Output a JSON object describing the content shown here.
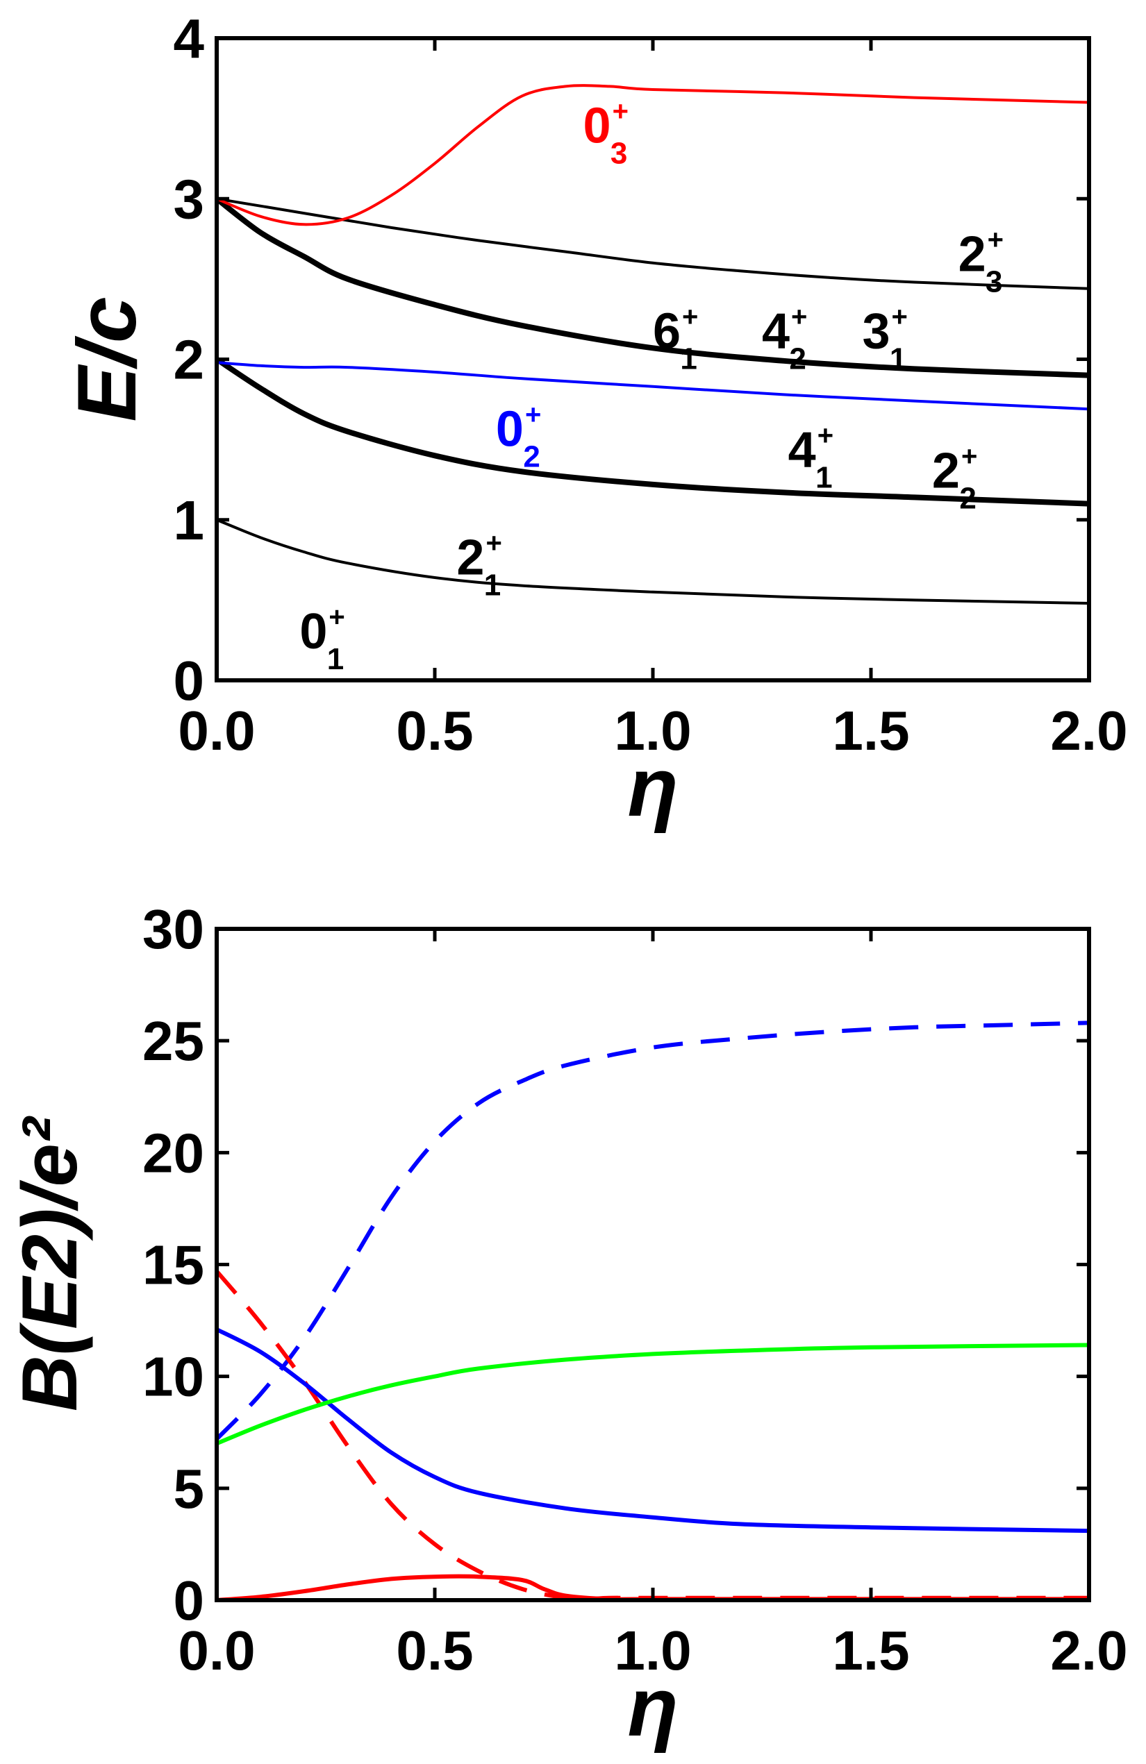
{
  "colors": {
    "black": "#000000",
    "red": "#ff0000",
    "blue": "#0000ff",
    "green": "#00ff00"
  },
  "chart_data": [
    {
      "type": "line",
      "xlabel": "η",
      "ylabel": "E/c",
      "xlim": [
        0,
        2
      ],
      "ylim": [
        0,
        4
      ],
      "xticks": [
        "0.0",
        "0.5",
        "1.0",
        "1.5",
        "2.0"
      ],
      "yticks": [
        "0",
        "1",
        "2",
        "3",
        "4"
      ],
      "grid": false,
      "series": [
        {
          "label": "0_1^+",
          "color": "#000000",
          "dash": false,
          "width": "thin",
          "x": [
            0,
            0.5,
            1.0,
            1.5,
            2.0
          ],
          "y": [
            0,
            0,
            0,
            0,
            0
          ]
        },
        {
          "label": "2_1^+",
          "color": "#000000",
          "dash": false,
          "width": "thin",
          "x": [
            0,
            0.1,
            0.2,
            0.3,
            0.5,
            0.7,
            1.0,
            1.3,
            1.6,
            2.0
          ],
          "y": [
            1.0,
            0.89,
            0.8,
            0.73,
            0.64,
            0.59,
            0.55,
            0.52,
            0.5,
            0.48
          ]
        },
        {
          "label": "4_1^+ 2_2^+",
          "color": "#000000",
          "dash": false,
          "width": "thick",
          "x": [
            0,
            0.1,
            0.2,
            0.3,
            0.5,
            0.7,
            1.0,
            1.3,
            1.6,
            2.0
          ],
          "y": [
            2.0,
            1.82,
            1.66,
            1.55,
            1.4,
            1.3,
            1.22,
            1.17,
            1.14,
            1.1
          ]
        },
        {
          "label": "0_2^+",
          "color": "#0000ff",
          "dash": false,
          "width": "thin",
          "x": [
            0,
            0.1,
            0.2,
            0.3,
            0.5,
            0.7,
            1.0,
            1.3,
            1.6,
            2.0
          ],
          "y": [
            1.98,
            1.96,
            1.95,
            1.95,
            1.92,
            1.88,
            1.83,
            1.78,
            1.74,
            1.69
          ]
        },
        {
          "label": "6_1^+ 4_2^+ 3_1^+",
          "color": "#000000",
          "dash": false,
          "width": "thick",
          "x": [
            0,
            0.1,
            0.2,
            0.3,
            0.5,
            0.7,
            1.0,
            1.3,
            1.6,
            2.0
          ],
          "y": [
            3.0,
            2.79,
            2.64,
            2.5,
            2.34,
            2.21,
            2.07,
            1.99,
            1.94,
            1.9
          ]
        },
        {
          "label": "2_3^+",
          "color": "#000000",
          "dash": false,
          "width": "thin",
          "x": [
            0,
            0.2,
            0.4,
            0.6,
            0.8,
            1.0,
            1.2,
            1.4,
            1.6,
            2.0
          ],
          "y": [
            3.0,
            2.91,
            2.82,
            2.74,
            2.67,
            2.6,
            2.55,
            2.51,
            2.48,
            2.44
          ]
        },
        {
          "label": "0_3^+",
          "color": "#ff0000",
          "dash": false,
          "width": "thin",
          "x": [
            0,
            0.1,
            0.2,
            0.3,
            0.4,
            0.5,
            0.6,
            0.7,
            0.8,
            0.9,
            1.0,
            1.3,
            1.6,
            2.0
          ],
          "y": [
            3.0,
            2.89,
            2.84,
            2.88,
            3.02,
            3.22,
            3.45,
            3.64,
            3.7,
            3.7,
            3.68,
            3.66,
            3.63,
            3.6
          ]
        }
      ],
      "annotations": [
        {
          "base": "0",
          "sub": "1",
          "color": "#000000",
          "x": 0.19,
          "y": 0.2
        },
        {
          "base": "2",
          "sub": "1",
          "color": "#000000",
          "x": 0.55,
          "y": 0.66
        },
        {
          "base": "0",
          "sub": "2",
          "color": "#0000ff",
          "x": 0.64,
          "y": 1.46
        },
        {
          "base": "4",
          "sub": "1",
          "color": "#000000",
          "x": 1.31,
          "y": 1.33
        },
        {
          "base": "2",
          "sub": "2",
          "color": "#000000",
          "x": 1.64,
          "y": 1.2
        },
        {
          "base": "6",
          "sub": "1",
          "color": "#000000",
          "x": 1.0,
          "y": 2.07
        },
        {
          "base": "4",
          "sub": "2",
          "color": "#000000",
          "x": 1.25,
          "y": 2.07
        },
        {
          "base": "3",
          "sub": "1",
          "color": "#000000",
          "x": 1.48,
          "y": 2.07
        },
        {
          "base": "2",
          "sub": "3",
          "color": "#000000",
          "x": 1.7,
          "y": 2.55
        },
        {
          "base": "0",
          "sub": "3",
          "color": "#ff0000",
          "x": 0.84,
          "y": 3.35
        }
      ]
    },
    {
      "type": "line",
      "xlabel": "η",
      "ylabel": "B(E2)/e²",
      "xlim": [
        0,
        2
      ],
      "ylim": [
        0,
        30
      ],
      "xticks": [
        "0.0",
        "0.5",
        "1.0",
        "1.5",
        "2.0"
      ],
      "yticks": [
        "0",
        "5",
        "10",
        "15",
        "20",
        "25",
        "30"
      ],
      "grid": false,
      "series": [
        {
          "color": "#0000ff",
          "dash": true,
          "x": [
            0,
            0.1,
            0.2,
            0.3,
            0.4,
            0.5,
            0.6,
            0.7,
            0.8,
            1.0,
            1.2,
            1.4,
            1.6,
            1.8,
            2.0
          ],
          "y": [
            7.2,
            9.2,
            11.7,
            14.8,
            18.0,
            20.5,
            22.2,
            23.2,
            23.9,
            24.7,
            25.1,
            25.4,
            25.6,
            25.7,
            25.8
          ]
        },
        {
          "color": "#ff0000",
          "dash": true,
          "x": [
            0,
            0.1,
            0.2,
            0.3,
            0.4,
            0.5,
            0.6,
            0.7,
            0.8,
            0.85,
            0.9,
            1.0,
            1.5,
            2.0
          ],
          "y": [
            14.7,
            12.4,
            9.8,
            6.9,
            4.3,
            2.5,
            1.3,
            0.5,
            0.1,
            0.05,
            0.1,
            0.1,
            0.1,
            0.1
          ]
        },
        {
          "color": "#0000ff",
          "dash": false,
          "x": [
            0,
            0.1,
            0.2,
            0.3,
            0.4,
            0.5,
            0.6,
            0.8,
            1.0,
            1.2,
            1.5,
            2.0
          ],
          "y": [
            12.1,
            11.1,
            9.7,
            8.1,
            6.6,
            5.5,
            4.8,
            4.1,
            3.7,
            3.4,
            3.25,
            3.1
          ]
        },
        {
          "color": "#00ff00",
          "dash": false,
          "x": [
            0,
            0.1,
            0.2,
            0.3,
            0.4,
            0.5,
            0.6,
            0.8,
            1.0,
            1.2,
            1.5,
            2.0
          ],
          "y": [
            7.0,
            7.8,
            8.5,
            9.1,
            9.6,
            10.0,
            10.35,
            10.75,
            11.0,
            11.15,
            11.3,
            11.4
          ]
        },
        {
          "color": "#ff0000",
          "dash": false,
          "x": [
            0,
            0.1,
            0.2,
            0.3,
            0.4,
            0.5,
            0.6,
            0.7,
            0.75,
            0.8,
            0.9,
            1.0,
            1.5,
            2.0
          ],
          "y": [
            0.0,
            0.15,
            0.4,
            0.7,
            0.95,
            1.05,
            1.05,
            0.9,
            0.5,
            0.2,
            0.05,
            0.05,
            0.05,
            0.05
          ]
        }
      ]
    }
  ]
}
